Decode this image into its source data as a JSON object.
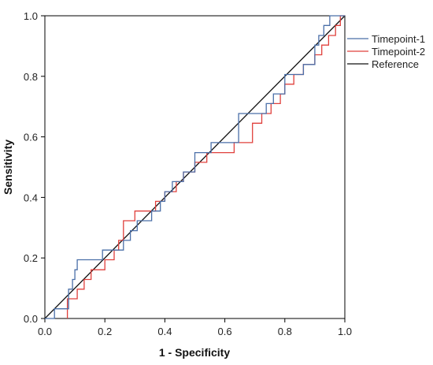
{
  "chart_data": {
    "type": "line",
    "xlabel": "1 - Specificity",
    "ylabel": "Sensitivity",
    "xlim": [
      0,
      1
    ],
    "ylim": [
      0,
      1
    ],
    "xticks": [
      "0.0",
      "0.2",
      "0.4",
      "0.6",
      "0.8",
      "1.0"
    ],
    "yticks": [
      "0.0",
      "0.2",
      "0.4",
      "0.6",
      "0.8",
      "1.0"
    ],
    "grid": false,
    "legend_position": "right",
    "series": [
      {
        "name": "Timepoint-1",
        "color": "#4a6fa8",
        "x": [
          0.0,
          0.032,
          0.032,
          0.079,
          0.079,
          0.092,
          0.092,
          0.1,
          0.1,
          0.108,
          0.108,
          0.164,
          0.164,
          0.192,
          0.192,
          0.215,
          0.215,
          0.238,
          0.238,
          0.262,
          0.262,
          0.285,
          0.285,
          0.308,
          0.308,
          0.333,
          0.333,
          0.356,
          0.356,
          0.385,
          0.385,
          0.4,
          0.4,
          0.411,
          0.411,
          0.425,
          0.425,
          0.462,
          0.462,
          0.5,
          0.5,
          0.554,
          0.554,
          0.59,
          0.59,
          0.646,
          0.646,
          0.664,
          0.664,
          0.738,
          0.738,
          0.762,
          0.762,
          0.8,
          0.8,
          0.822,
          0.822,
          0.862,
          0.862,
          0.9,
          0.9,
          0.913,
          0.913,
          0.93,
          0.93,
          0.95,
          0.95,
          0.984,
          0.984,
          1.0
        ],
        "y": [
          0.0,
          0.0,
          0.032,
          0.032,
          0.097,
          0.097,
          0.129,
          0.129,
          0.161,
          0.161,
          0.194,
          0.194,
          0.194,
          0.194,
          0.226,
          0.226,
          0.226,
          0.226,
          0.226,
          0.226,
          0.258,
          0.258,
          0.29,
          0.29,
          0.323,
          0.323,
          0.323,
          0.323,
          0.355,
          0.355,
          0.387,
          0.387,
          0.419,
          0.419,
          0.419,
          0.419,
          0.452,
          0.452,
          0.484,
          0.484,
          0.548,
          0.548,
          0.581,
          0.581,
          0.581,
          0.581,
          0.677,
          0.677,
          0.677,
          0.677,
          0.71,
          0.71,
          0.742,
          0.742,
          0.806,
          0.806,
          0.806,
          0.806,
          0.839,
          0.839,
          0.903,
          0.903,
          0.935,
          0.935,
          0.968,
          0.968,
          1.0,
          1.0,
          1.0,
          1.0
        ]
      },
      {
        "name": "Timepoint-2",
        "color": "#e0403c",
        "x": [
          0.075,
          0.075,
          0.108,
          0.108,
          0.131,
          0.131,
          0.154,
          0.154,
          0.2,
          0.2,
          0.231,
          0.231,
          0.246,
          0.246,
          0.262,
          0.262,
          0.3,
          0.3,
          0.338,
          0.338,
          0.369,
          0.369,
          0.4,
          0.4,
          0.438,
          0.438,
          0.462,
          0.462,
          0.5,
          0.5,
          0.54,
          0.54,
          0.577,
          0.577,
          0.6,
          0.6,
          0.631,
          0.631,
          0.692,
          0.692,
          0.723,
          0.723,
          0.754,
          0.754,
          0.785,
          0.785,
          0.8,
          0.8,
          0.83,
          0.83,
          0.862,
          0.862,
          0.9,
          0.9,
          0.923,
          0.923,
          0.946,
          0.946,
          0.969,
          0.969,
          0.985,
          0.985,
          1.0
        ],
        "y": [
          0.0,
          0.065,
          0.065,
          0.097,
          0.097,
          0.129,
          0.129,
          0.161,
          0.161,
          0.194,
          0.194,
          0.226,
          0.226,
          0.258,
          0.258,
          0.323,
          0.323,
          0.355,
          0.355,
          0.355,
          0.355,
          0.387,
          0.387,
          0.419,
          0.419,
          0.452,
          0.452,
          0.484,
          0.484,
          0.516,
          0.516,
          0.548,
          0.548,
          0.548,
          0.548,
          0.548,
          0.548,
          0.581,
          0.581,
          0.645,
          0.645,
          0.677,
          0.677,
          0.71,
          0.71,
          0.742,
          0.742,
          0.774,
          0.774,
          0.806,
          0.806,
          0.839,
          0.839,
          0.871,
          0.871,
          0.903,
          0.903,
          0.935,
          0.935,
          0.968,
          0.968,
          1.0,
          1.0
        ]
      },
      {
        "name": "Reference",
        "color": "#111111",
        "x": [
          0,
          1
        ],
        "y": [
          0,
          1
        ]
      }
    ]
  }
}
